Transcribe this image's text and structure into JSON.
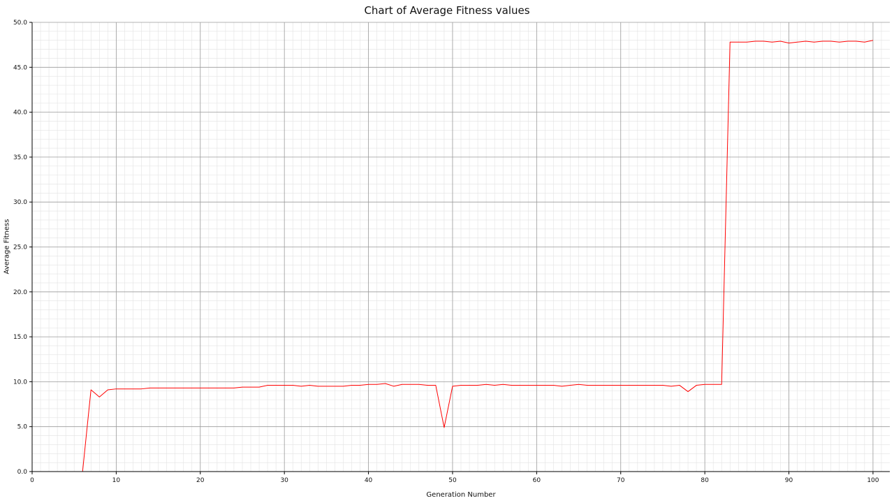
{
  "chart_data": {
    "type": "line",
    "title": "Chart of Average Fitness values",
    "xlabel": "Generation Number",
    "ylabel": "Average Fitness",
    "xlim": [
      0,
      102
    ],
    "ylim": [
      0,
      50
    ],
    "x_ticks": [
      "0",
      "10",
      "20",
      "30",
      "40",
      "50",
      "60",
      "70",
      "80",
      "90",
      "100"
    ],
    "y_ticks": [
      "0.0",
      "5.0",
      "10.0",
      "15.0",
      "20.0",
      "25.0",
      "30.0",
      "35.0",
      "40.0",
      "45.0",
      "50.0"
    ],
    "grid": true,
    "legend": "none",
    "series": [
      {
        "color": "#ff0000",
        "x": [
          0,
          1,
          2,
          3,
          4,
          5,
          6,
          7,
          8,
          9,
          10,
          11,
          12,
          13,
          14,
          15,
          16,
          17,
          18,
          19,
          20,
          21,
          22,
          23,
          24,
          25,
          26,
          27,
          28,
          29,
          30,
          31,
          32,
          33,
          34,
          35,
          36,
          37,
          38,
          39,
          40,
          41,
          42,
          43,
          44,
          45,
          46,
          47,
          48,
          49,
          50,
          51,
          52,
          53,
          54,
          55,
          56,
          57,
          58,
          59,
          60,
          61,
          62,
          63,
          64,
          65,
          66,
          67,
          68,
          69,
          70,
          71,
          72,
          73,
          74,
          75,
          76,
          77,
          78,
          79,
          80,
          81,
          82,
          83,
          84,
          85,
          86,
          87,
          88,
          89,
          90,
          91,
          92,
          93,
          94,
          95,
          96,
          97,
          98,
          99,
          100
        ],
        "values": [
          0.0,
          0.0,
          0.0,
          0.0,
          0.0,
          0.0,
          0.0,
          9.1,
          8.3,
          9.1,
          9.2,
          9.2,
          9.2,
          9.2,
          9.3,
          9.3,
          9.3,
          9.3,
          9.3,
          9.3,
          9.3,
          9.3,
          9.3,
          9.3,
          9.3,
          9.4,
          9.4,
          9.4,
          9.6,
          9.6,
          9.6,
          9.6,
          9.5,
          9.6,
          9.5,
          9.5,
          9.5,
          9.5,
          9.6,
          9.6,
          9.7,
          9.7,
          9.8,
          9.5,
          9.7,
          9.7,
          9.7,
          9.6,
          9.6,
          4.9,
          9.5,
          9.6,
          9.6,
          9.6,
          9.7,
          9.6,
          9.7,
          9.6,
          9.6,
          9.6,
          9.6,
          9.6,
          9.6,
          9.5,
          9.6,
          9.7,
          9.6,
          9.6,
          9.6,
          9.6,
          9.6,
          9.6,
          9.6,
          9.6,
          9.6,
          9.6,
          9.5,
          9.6,
          8.9,
          9.6,
          9.7,
          9.7,
          9.7,
          47.8,
          47.8,
          47.8,
          47.9,
          47.9,
          47.8,
          47.9,
          47.7,
          47.8,
          47.9,
          47.8,
          47.9,
          47.9,
          47.8,
          47.9,
          47.9,
          47.8,
          48.0
        ]
      }
    ]
  }
}
